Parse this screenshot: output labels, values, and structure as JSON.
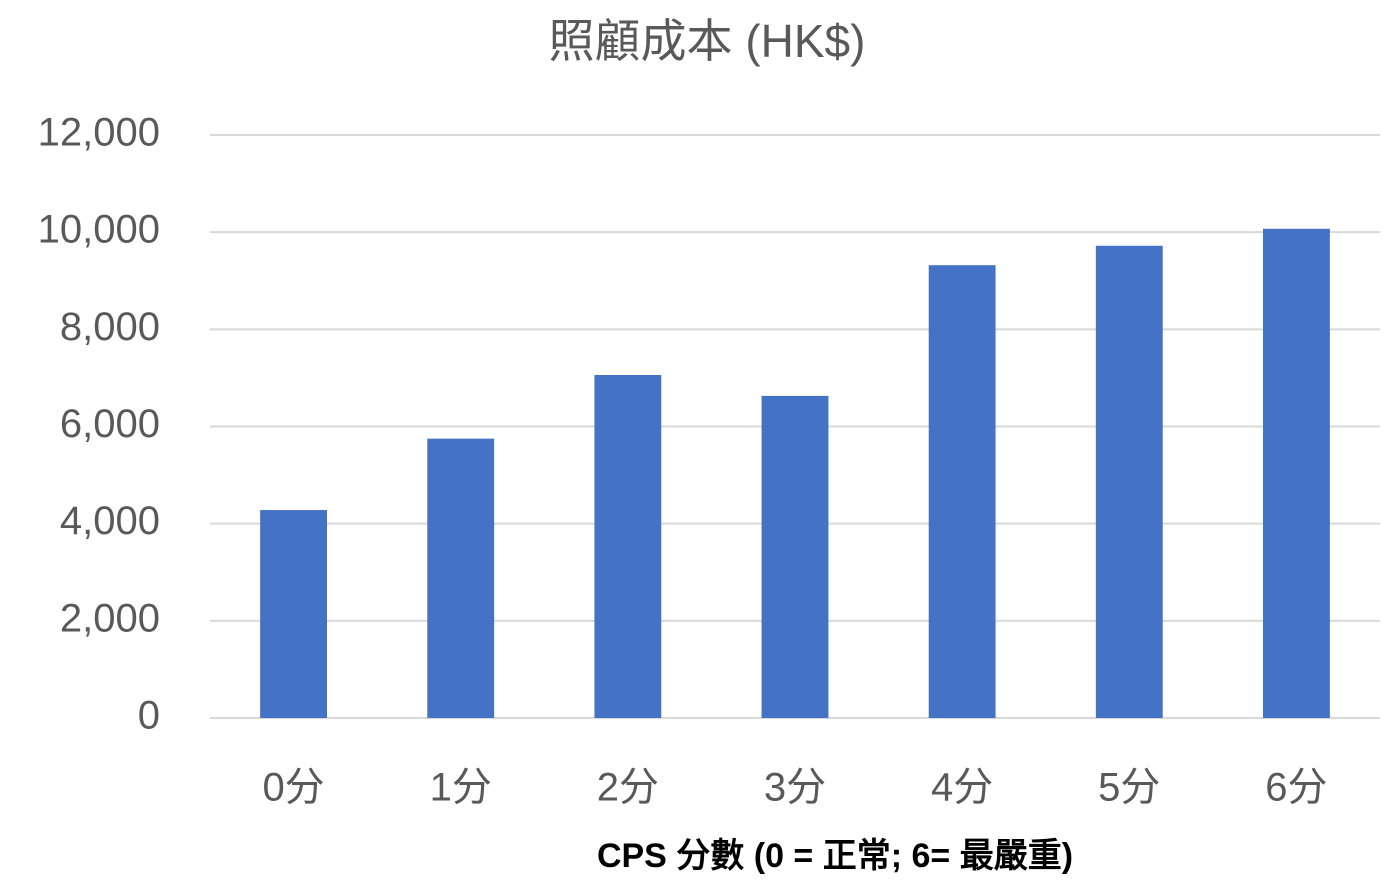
{
  "chart_data": {
    "type": "bar",
    "title": "照顧成本 (HK$)",
    "x_label": "CPS 分數 (0 = 正常; 6= 最嚴重)",
    "categories": [
      "0分",
      "1分",
      "2分",
      "3分",
      "4分",
      "5分",
      "6分"
    ],
    "values": [
      4280,
      5750,
      7060,
      6630,
      9320,
      9720,
      10070
    ],
    "color": "#4472c4",
    "ylim": [
      0,
      12000
    ],
    "yticks": [
      0,
      {
        "value": 2000,
        "label": "2,000"
      },
      {
        "value": 4000,
        "label": "4,000"
      },
      {
        "value": 6000,
        "label": "6,000"
      },
      {
        "value": 8000,
        "label": "8,000"
      },
      {
        "value": 10000,
        "label": "10,000"
      },
      {
        "value": 12000,
        "label": "12,000"
      }
    ],
    "grid": true
  }
}
